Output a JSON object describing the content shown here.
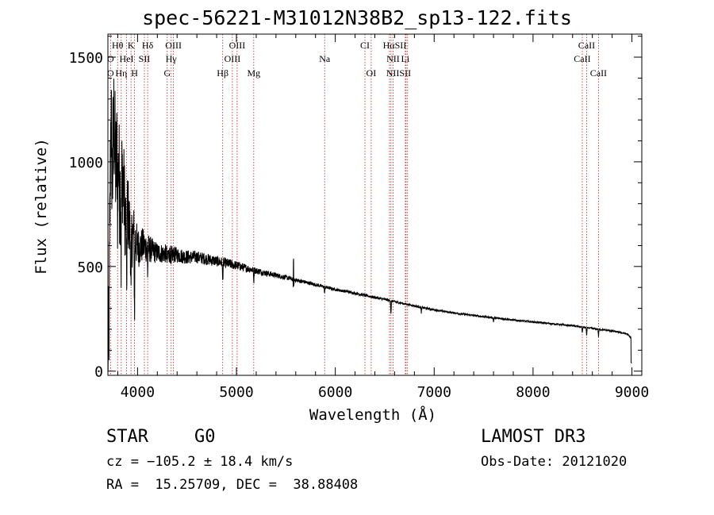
{
  "header": {
    "title": "spec-56221-M31012N38B2_sp13-122.fits"
  },
  "footer": {
    "class_label": "STAR",
    "subclass": "G0",
    "survey": "LAMOST DR3",
    "cz": "cz = −105.2 ± 18.4 km/s",
    "obs_date": "Obs-Date: 20121020",
    "coords": "RA =  15.25709, DEC =  38.88408"
  },
  "chart_data": {
    "type": "line",
    "title": "spec-56221-M31012N38B2_sp13-122.fits",
    "xlabel": "Wavelength (Å)",
    "ylabel": "Flux (relative)",
    "xlim": [
      3700,
      9100
    ],
    "ylim": [
      -20,
      1610
    ],
    "xticks": [
      4000,
      5000,
      6000,
      7000,
      8000,
      9000
    ],
    "yticks": [
      0,
      500,
      1000,
      1500
    ],
    "grid": false,
    "line_color": "#000000",
    "marker_color": "#b22222",
    "continuum": [
      [
        3700,
        0
      ],
      [
        3710,
        150
      ],
      [
        3720,
        700
      ],
      [
        3730,
        1250
      ],
      [
        3745,
        900
      ],
      [
        3760,
        1200
      ],
      [
        3780,
        950
      ],
      [
        3800,
        1100
      ],
      [
        3820,
        850
      ],
      [
        3850,
        950
      ],
      [
        3880,
        700
      ],
      [
        3900,
        780
      ],
      [
        3930,
        620
      ],
      [
        3960,
        660
      ],
      [
        4000,
        590
      ],
      [
        4050,
        600
      ],
      [
        4100,
        590
      ],
      [
        4150,
        575
      ],
      [
        4200,
        565
      ],
      [
        4300,
        560
      ],
      [
        4400,
        555
      ],
      [
        4500,
        545
      ],
      [
        4600,
        545
      ],
      [
        4700,
        535
      ],
      [
        4800,
        525
      ],
      [
        4900,
        515
      ],
      [
        5000,
        505
      ],
      [
        5100,
        492
      ],
      [
        5200,
        480
      ],
      [
        5300,
        468
      ],
      [
        5400,
        458
      ],
      [
        5500,
        448
      ],
      [
        5600,
        435
      ],
      [
        5700,
        425
      ],
      [
        5800,
        413
      ],
      [
        5900,
        402
      ],
      [
        6000,
        390
      ],
      [
        6100,
        382
      ],
      [
        6200,
        372
      ],
      [
        6300,
        362
      ],
      [
        6400,
        352
      ],
      [
        6500,
        343
      ],
      [
        6600,
        332
      ],
      [
        6700,
        322
      ],
      [
        6800,
        312
      ],
      [
        6900,
        302
      ],
      [
        7000,
        293
      ],
      [
        7200,
        278
      ],
      [
        7400,
        266
      ],
      [
        7600,
        255
      ],
      [
        7800,
        244
      ],
      [
        8000,
        235
      ],
      [
        8200,
        226
      ],
      [
        8400,
        217
      ],
      [
        8600,
        204
      ],
      [
        8800,
        192
      ],
      [
        8950,
        178
      ],
      [
        8990,
        160
      ],
      [
        9000,
        30
      ]
    ],
    "noise_profile": [
      [
        3700,
        320
      ],
      [
        3800,
        300
      ],
      [
        3900,
        190
      ],
      [
        4000,
        100
      ],
      [
        4100,
        70
      ],
      [
        4200,
        50
      ],
      [
        4400,
        38
      ],
      [
        4600,
        30
      ],
      [
        4800,
        26
      ],
      [
        5000,
        22
      ],
      [
        5200,
        16
      ],
      [
        5600,
        10
      ],
      [
        6000,
        7
      ],
      [
        7000,
        5
      ],
      [
        8000,
        4
      ],
      [
        9000,
        4
      ]
    ],
    "features": [
      {
        "w": 3800,
        "depth": 380
      },
      {
        "w": 3834,
        "depth": 350
      },
      {
        "w": 3889,
        "depth": 420
      },
      {
        "w": 3934,
        "depth": 320
      },
      {
        "w": 3969,
        "depth": 390
      },
      {
        "w": 4102,
        "depth": 120
      },
      {
        "w": 4300,
        "depth": 60
      },
      {
        "w": 4340,
        "depth": 80
      },
      {
        "w": 4861,
        "depth": 100
      },
      {
        "w": 5175,
        "depth": 60
      },
      {
        "w": 5577,
        "depth": 80,
        "emission": 120
      },
      {
        "w": 5892,
        "depth": 30
      },
      {
        "w": 6563,
        "depth": 70
      },
      {
        "w": 6870,
        "depth": 25
      },
      {
        "w": 7600,
        "depth": 20
      },
      {
        "w": 8498,
        "depth": 30
      },
      {
        "w": 8542,
        "depth": 40
      },
      {
        "w": 8662,
        "depth": 35
      }
    ],
    "annotations": [
      {
        "label": "Hθ",
        "w": 3798,
        "row": 0
      },
      {
        "label": "K",
        "w": 3934,
        "row": 0
      },
      {
        "label": "Hδ",
        "w": 4102,
        "row": 0
      },
      {
        "label": "OIII",
        "w": 4363,
        "row": 0
      },
      {
        "label": "OIII",
        "w": 5007,
        "row": 0
      },
      {
        "label": "CI",
        "w": 6300,
        "row": 0
      },
      {
        "label": "HαSII",
        "w": 6600,
        "row": 0
      },
      {
        "label": "CaII",
        "w": 8542,
        "row": 0
      },
      {
        "label": "O",
        "w": 3727,
        "row": 1
      },
      {
        "label": "HeI",
        "w": 3889,
        "row": 1
      },
      {
        "label": "SII",
        "w": 4069,
        "row": 1
      },
      {
        "label": "Hγ",
        "w": 4340,
        "row": 1
      },
      {
        "label": "OIII",
        "w": 4959,
        "row": 1
      },
      {
        "label": "Na",
        "w": 5892,
        "row": 1
      },
      {
        "label": "NII",
        "w": 6584,
        "row": 1
      },
      {
        "label": "Li",
        "w": 6708,
        "row": 1
      },
      {
        "label": "CaII",
        "w": 8498,
        "row": 1
      },
      {
        "label": "O",
        "w": 3727,
        "row": 2
      },
      {
        "label": "Hη",
        "w": 3835,
        "row": 2
      },
      {
        "label": "H",
        "w": 3969,
        "row": 2
      },
      {
        "label": "G",
        "w": 4300,
        "row": 2
      },
      {
        "label": "Hβ",
        "w": 4861,
        "row": 2
      },
      {
        "label": "Mg",
        "w": 5175,
        "row": 2
      },
      {
        "label": "OI",
        "w": 6363,
        "row": 2
      },
      {
        "label": "NIISII",
        "w": 6640,
        "row": 2
      },
      {
        "label": "CaII",
        "w": 8662,
        "row": 2
      }
    ],
    "marker_lines": [
      3727,
      3798,
      3835,
      3889,
      3934,
      3969,
      4069,
      4102,
      4300,
      4340,
      4363,
      4861,
      4959,
      5007,
      5175,
      5892,
      6300,
      6363,
      6548,
      6563,
      6584,
      6708,
      6716,
      6731,
      8498,
      8542,
      8662
    ]
  }
}
